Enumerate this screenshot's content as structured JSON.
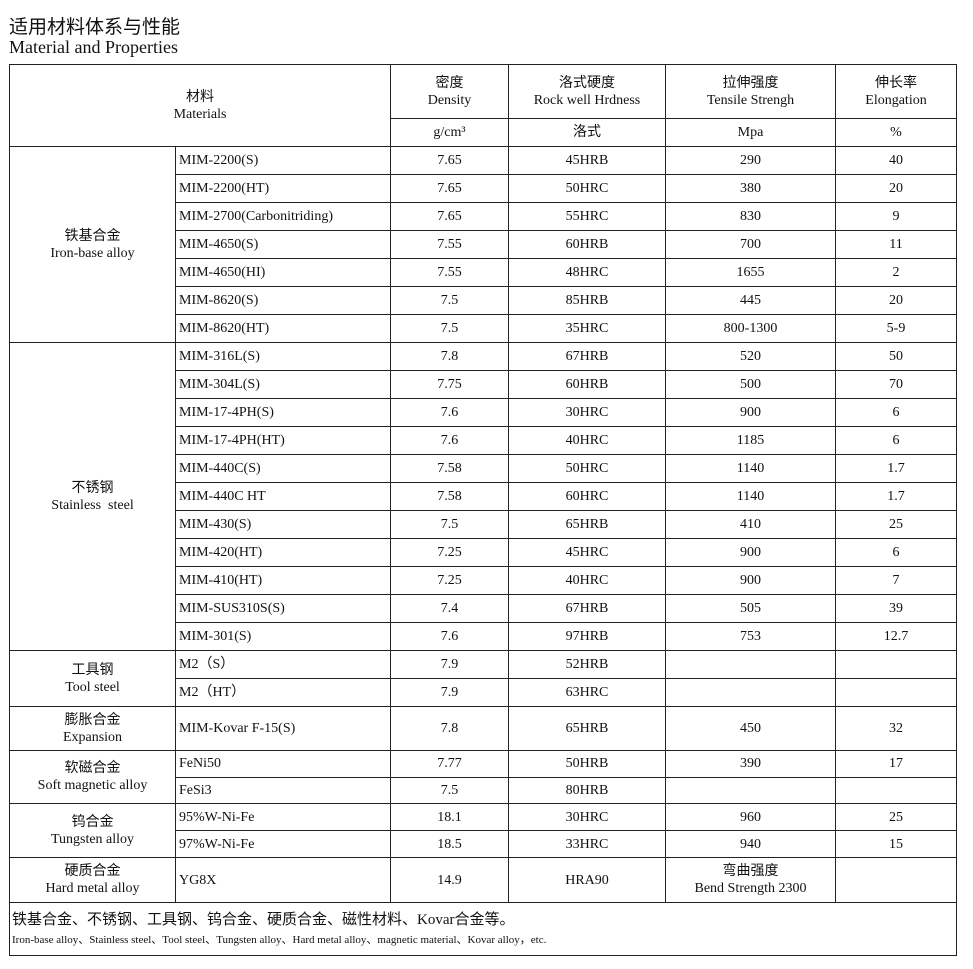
{
  "title": {
    "cn": "适用材料体系与性能",
    "en": "Material and Properties"
  },
  "header": {
    "materials": {
      "cn": "材料",
      "en": "Materials"
    },
    "columns": [
      {
        "cn": "密度",
        "en": "Density",
        "unit": "g/cm³"
      },
      {
        "cn": "洛式硬度",
        "en": "Rock well Hrdness",
        "unit": "洛式"
      },
      {
        "cn": "拉伸强度",
        "en": "Tensile Strengh",
        "unit": "Mpa"
      },
      {
        "cn": "伸长率",
        "en": "Elongation",
        "unit": "%"
      }
    ]
  },
  "groups": [
    {
      "cn": "铁基合金",
      "en": "Iron-base alloy",
      "rows": [
        [
          "MIM-2200(S)",
          "7.65",
          "45HRB",
          "290",
          "40"
        ],
        [
          "MIM-2200(HT)",
          "7.65",
          "50HRC",
          "380",
          "20"
        ],
        [
          "MIM-2700(Carbonitriding)",
          "7.65",
          "55HRC",
          "830",
          "9"
        ],
        [
          "MIM-4650(S)",
          "7.55",
          "60HRB",
          "700",
          "11"
        ],
        [
          "MIM-4650(HI)",
          "7.55",
          "48HRC",
          "1655",
          "2"
        ],
        [
          "MIM-8620(S)",
          "7.5",
          "85HRB",
          "445",
          "20"
        ],
        [
          "MIM-8620(HT)",
          "7.5",
          "35HRC",
          "800-1300",
          "5-9"
        ]
      ]
    },
    {
      "cn": "不锈钢",
      "en": "Stainless  steel",
      "rows": [
        [
          "MIM-316L(S)",
          "7.8",
          "67HRB",
          "520",
          "50"
        ],
        [
          "MIM-304L(S)",
          "7.75",
          "60HRB",
          "500",
          "70"
        ],
        [
          "MIM-17-4PH(S)",
          "7.6",
          "30HRC",
          "900",
          "6"
        ],
        [
          "MIM-17-4PH(HT)",
          "7.6",
          "40HRC",
          "1185",
          "6"
        ],
        [
          "MIM-440C(S)",
          "7.58",
          "50HRC",
          "1140",
          "1.7"
        ],
        [
          "MIM-440C HT",
          "7.58",
          "60HRC",
          "1140",
          "1.7"
        ],
        [
          "MIM-430(S)",
          "7.5",
          "65HRB",
          "410",
          "25"
        ],
        [
          "MIM-420(HT)",
          "7.25",
          "45HRC",
          "900",
          "6"
        ],
        [
          "MIM-410(HT)",
          "7.25",
          "40HRC",
          "900",
          "7"
        ],
        [
          "MIM-SUS310S(S)",
          "7.4",
          "67HRB",
          "505",
          "39"
        ],
        [
          "MIM-301(S)",
          "7.6",
          "97HRB",
          "753",
          "12.7"
        ]
      ]
    },
    {
      "cn": "工具钢",
      "en": "Tool steel",
      "rows": [
        [
          "M2（S）",
          "7.9",
          "52HRB",
          "",
          ""
        ],
        [
          "M2（HT）",
          "7.9",
          "63HRC",
          "",
          ""
        ]
      ]
    },
    {
      "cn": "膨胀合金",
      "en": "Expansion",
      "rows": [
        [
          "MIM-Kovar F-15(S)",
          "7.8",
          "65HRB",
          "450",
          "32"
        ]
      ]
    },
    {
      "cn": "软磁合金",
      "en": "Soft magnetic alloy",
      "rows": [
        [
          "FeNi50",
          "7.77",
          "50HRB",
          "390",
          "17"
        ],
        [
          "FeSi3",
          "7.5",
          "80HRB",
          "",
          ""
        ]
      ]
    },
    {
      "cn": "钨合金",
      "en": "Tungsten alloy",
      "rows": [
        [
          "95%W-Ni-Fe",
          "18.1",
          "30HRC",
          "960",
          "25"
        ],
        [
          "97%W-Ni-Fe",
          "18.5",
          "33HRC",
          "940",
          "15"
        ]
      ]
    },
    {
      "cn": "硬质合金",
      "en": "Hard metal alloy",
      "rows": [
        [
          "YG8X",
          "14.9",
          "HRA90",
          "弯曲强度\nBend Strength 2300",
          ""
        ]
      ]
    }
  ],
  "footer": {
    "cn": "铁基合金、不锈钢、工具钢、钨合金、硬质合金、磁性材料、Kovar合金等。",
    "en": "Iron-base alloy、Stainless  steel、Tool steel、Tungsten alloy、Hard metal alloy、magnetic material、Kovar alloy，etc."
  }
}
